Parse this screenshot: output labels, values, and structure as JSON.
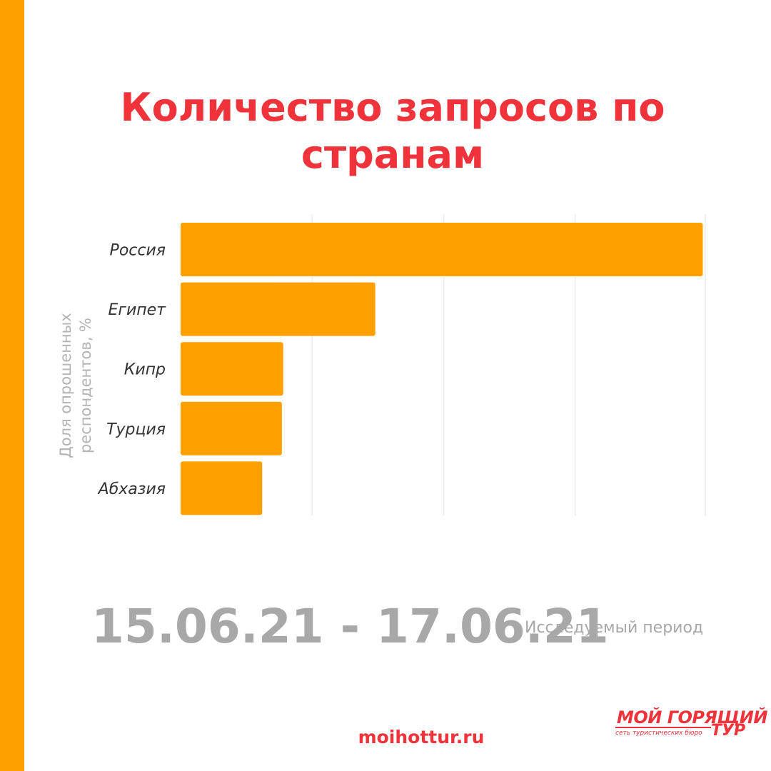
{
  "title": "Количество запросов по странам",
  "ylabel": "Доля опрошенных респондентов, %",
  "period": {
    "range": "15.06.21 - 17.06.21",
    "caption": "Исследуемый период"
  },
  "footer": {
    "site": "moihottur.ru",
    "logo_main": "МОЙ ГОРЯЩИЙ",
    "logo_tur": "ТУР",
    "logo_sub": "сеть туристических бюро"
  },
  "colors": {
    "bar": "#ff9f00",
    "accent": "#f0333a",
    "stripe": "#ff9f00",
    "grid": "#ececec"
  },
  "chart_data": {
    "type": "bar",
    "orientation": "horizontal",
    "title": "Количество запросов по странам",
    "ylabel": "Доля опрошенных респондентов, %",
    "categories": [
      "Россия",
      "Египет",
      "Кипр",
      "Турция",
      "Абхазия"
    ],
    "values": [
      39.7,
      14.8,
      7.8,
      7.7,
      6.2
    ],
    "xlim": [
      0,
      40
    ],
    "grid": true,
    "tick_labels_visible": false
  }
}
